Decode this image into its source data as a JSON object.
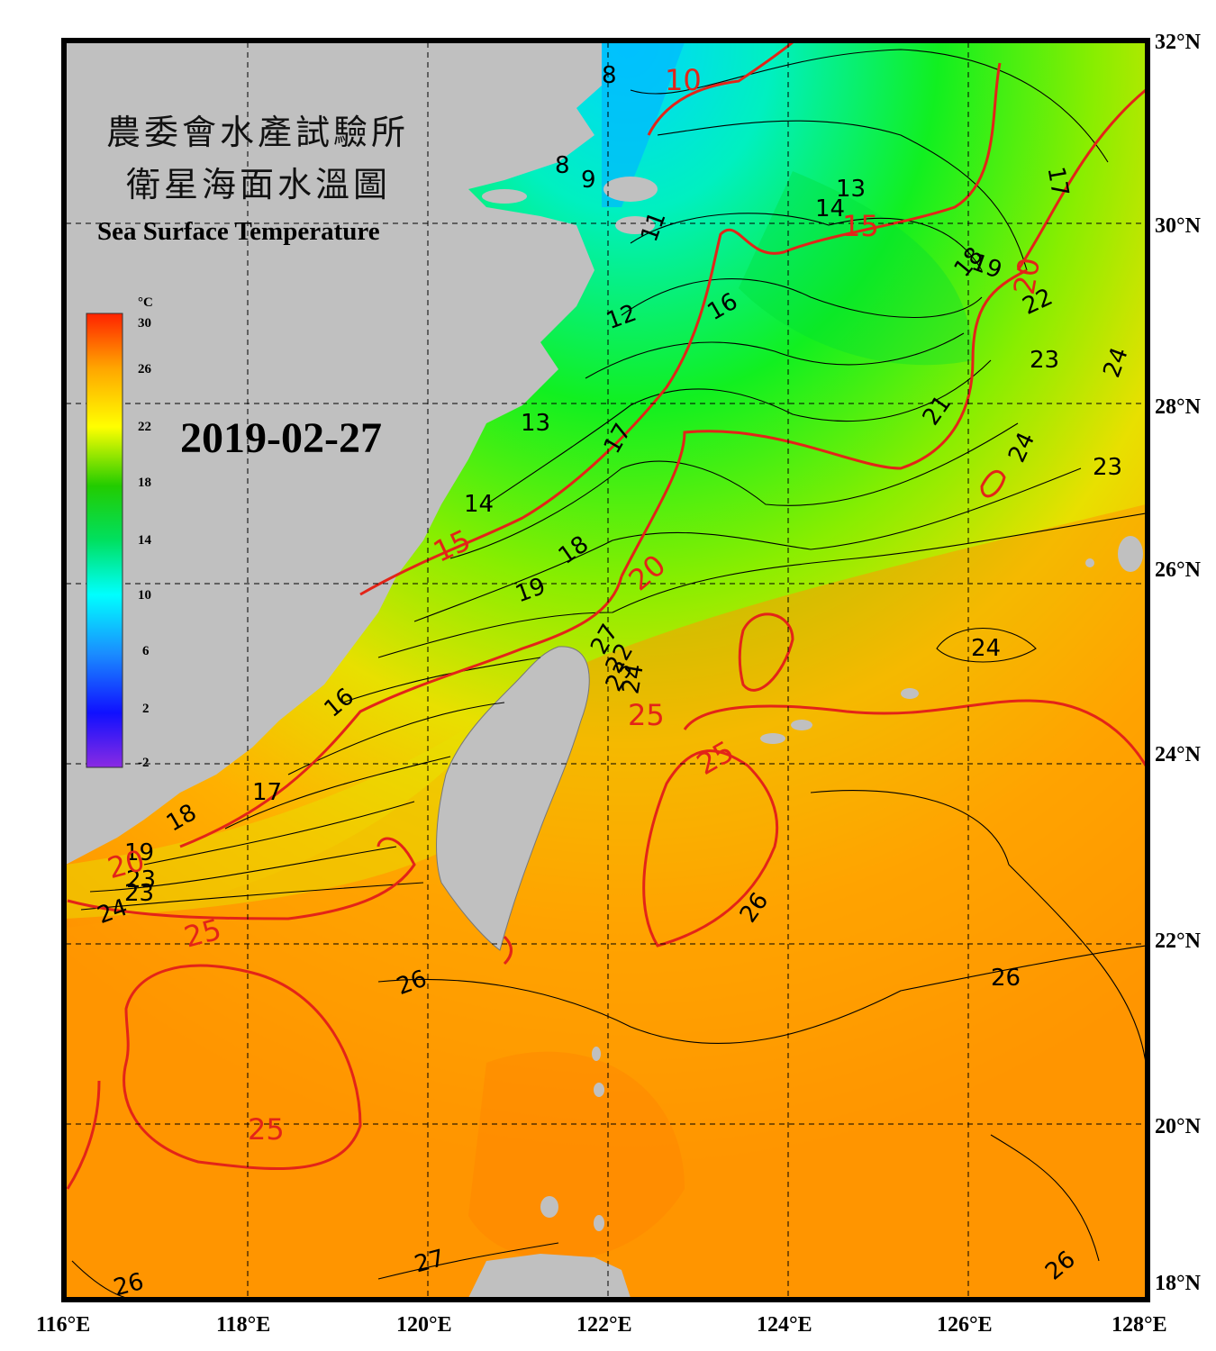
{
  "title": {
    "line1": "農委會水產試驗所",
    "line2": "衛星海面水溫圖",
    "english": "Sea Surface Temperature"
  },
  "date": "2019-02-27",
  "colorbar": {
    "unit": "°C",
    "ticks": [
      "30",
      "26",
      "22",
      "18",
      "14",
      "10",
      "6",
      "2",
      "-2"
    ],
    "range": [
      -2,
      30
    ]
  },
  "longitude_labels": [
    "116°E",
    "118°E",
    "120°E",
    "122°E",
    "124°E",
    "126°E",
    "128°E"
  ],
  "latitude_labels": [
    "32°N",
    "30°N",
    "28°N",
    "26°N",
    "24°N",
    "22°N",
    "20°N",
    "18°N"
  ],
  "contour_labels": {
    "black": [
      "8",
      "8",
      "9",
      "11",
      "12",
      "13",
      "13",
      "14",
      "14",
      "16",
      "16",
      "17",
      "17",
      "17",
      "18",
      "18",
      "18",
      "19",
      "19",
      "19",
      "21",
      "22",
      "23",
      "23",
      "23",
      "24",
      "24",
      "24",
      "24",
      "24",
      "26",
      "26",
      "26",
      "26",
      "26",
      "27",
      "21",
      "22",
      "23"
    ],
    "red": [
      "10",
      "15",
      "15",
      "20",
      "20",
      "20",
      "25",
      "25",
      "25",
      "25"
    ]
  },
  "colors": {
    "land": "#c0c0c0",
    "warm_isotherm": "#e32418",
    "frame": "#000000"
  }
}
